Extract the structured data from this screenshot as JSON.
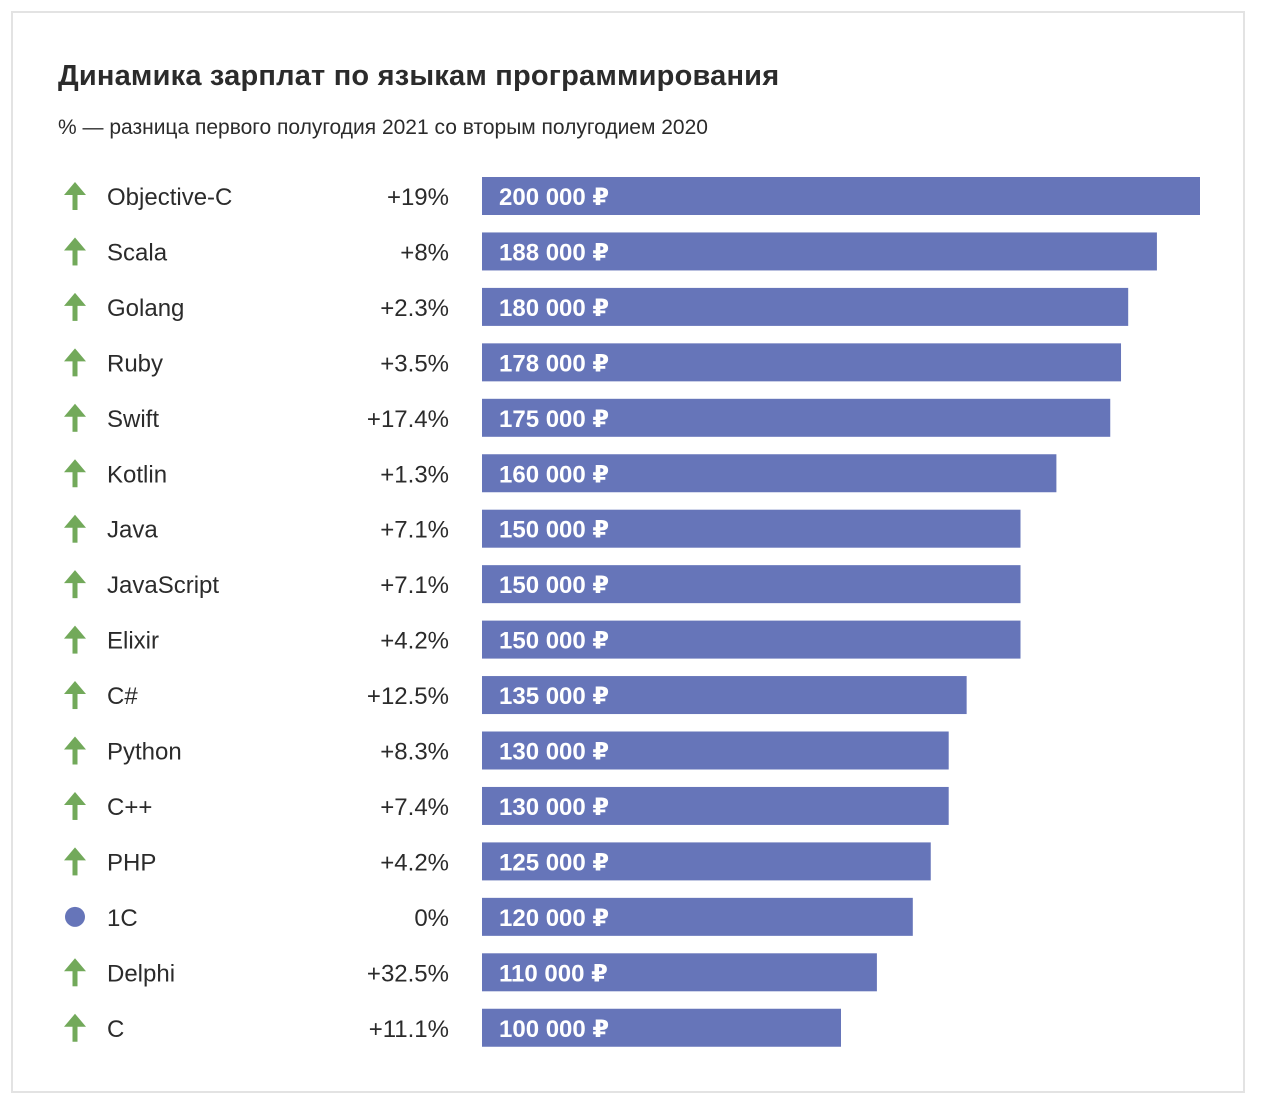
{
  "chart_data": {
    "type": "bar",
    "orientation": "horizontal",
    "title": "Динамика зарплат по языкам программирования",
    "subtitle": "% — разница первого полугодия 2021 со вторым полугодием 2020",
    "categories": [
      "Objective-C",
      "Scala",
      "Golang",
      "Ruby",
      "Swift",
      "Kotlin",
      "Java",
      "JavaScript",
      "Elixir",
      "C#",
      "Python",
      "C++",
      "PHP",
      "1С",
      "Delphi",
      "C"
    ],
    "values": [
      200000,
      188000,
      180000,
      178000,
      175000,
      160000,
      150000,
      150000,
      150000,
      135000,
      130000,
      130000,
      125000,
      120000,
      110000,
      100000
    ],
    "value_labels": [
      "200 000 ₽",
      "188 000 ₽",
      "180 000 ₽",
      "178 000 ₽",
      "175 000 ₽",
      "160 000 ₽",
      "150 000 ₽",
      "150 000 ₽",
      "150 000 ₽",
      "135 000 ₽",
      "130 000 ₽",
      "130 000 ₽",
      "125 000 ₽",
      "120 000 ₽",
      "110 000 ₽",
      "100 000 ₽"
    ],
    "changes": [
      "+19%",
      "+8%",
      "+2.3%",
      "+3.5%",
      "+17.4%",
      "+1.3%",
      "+7.1%",
      "+7.1%",
      "+4.2%",
      "+12.5%",
      "+8.3%",
      "+7.4%",
      "+4.2%",
      "0%",
      "+32.5%",
      "+11.1%"
    ],
    "trend": [
      "up",
      "up",
      "up",
      "up",
      "up",
      "up",
      "up",
      "up",
      "up",
      "up",
      "up",
      "up",
      "up",
      "flat",
      "up",
      "up"
    ],
    "xlim": [
      0,
      200000
    ],
    "grid": false,
    "legend": "none",
    "colors": {
      "bar": "#6675b9",
      "up_arrow": "#72a95a",
      "flat_dot": "#6675b9"
    },
    "icons": {
      "up": "arrow-up-icon",
      "flat": "dot-icon"
    }
  }
}
